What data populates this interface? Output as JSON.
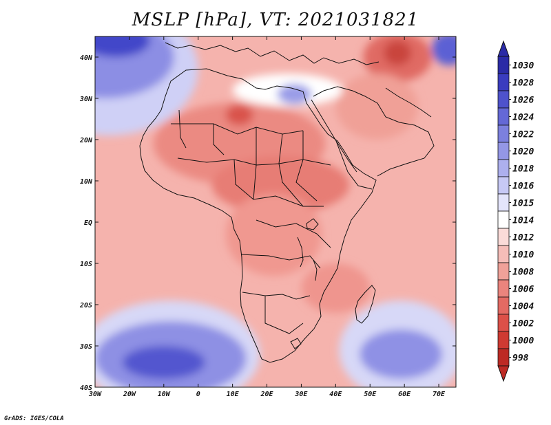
{
  "title": "MSLP [hPa], VT: 2021031821",
  "credit": "GrADS: IGES/COLA",
  "map": {
    "lon_range": [
      -30,
      75
    ],
    "lat_range": [
      -40,
      45
    ],
    "x_ticks": [
      {
        "lon": -30,
        "label": "30W"
      },
      {
        "lon": -20,
        "label": "20W"
      },
      {
        "lon": -10,
        "label": "10W"
      },
      {
        "lon": 0,
        "label": "0"
      },
      {
        "lon": 10,
        "label": "10E"
      },
      {
        "lon": 20,
        "label": "20E"
      },
      {
        "lon": 30,
        "label": "30E"
      },
      {
        "lon": 40,
        "label": "40E"
      },
      {
        "lon": 50,
        "label": "50E"
      },
      {
        "lon": 60,
        "label": "60E"
      },
      {
        "lon": 70,
        "label": "70E"
      }
    ],
    "y_ticks": [
      {
        "lat": 40,
        "label": "40N"
      },
      {
        "lat": 30,
        "label": "30N"
      },
      {
        "lat": 20,
        "label": "20N"
      },
      {
        "lat": 10,
        "label": "10N"
      },
      {
        "lat": 0,
        "label": "EQ"
      },
      {
        "lat": -10,
        "label": "10S"
      },
      {
        "lat": -20,
        "label": "20S"
      },
      {
        "lat": -30,
        "label": "30S"
      },
      {
        "lat": -40,
        "label": "40S"
      }
    ],
    "background_color": "#f5b3ad"
  },
  "fields": [
    {
      "name": "low-north-africa",
      "lon": 12,
      "lat": 19,
      "rx": 25,
      "ry": 10,
      "color": "#eb8a82"
    },
    {
      "name": "low-sahel",
      "lon": 24,
      "lat": 9,
      "rx": 20,
      "ry": 7,
      "color": "#e77d75"
    },
    {
      "name": "low-libya",
      "lon": 12,
      "lat": 26,
      "rx": 4,
      "ry": 2.5,
      "color": "#d9534c"
    },
    {
      "name": "low-congo",
      "lon": 22,
      "lat": -3,
      "rx": 14,
      "ry": 10,
      "color": "#f09890"
    },
    {
      "name": "low-mozambique",
      "lon": 40,
      "lat": -16,
      "rx": 10,
      "ry": 6,
      "color": "#ef958e"
    },
    {
      "name": "low-iran",
      "lon": 58,
      "lat": 40,
      "rx": 10,
      "ry": 6,
      "color": "#e06a63"
    },
    {
      "name": "low-iran-core",
      "lon": 58,
      "lat": 41,
      "rx": 4,
      "ry": 3,
      "color": "#c9443d"
    },
    {
      "name": "low-arabia",
      "lon": 52,
      "lat": 28,
      "rx": 12,
      "ry": 8,
      "color": "#f0a097"
    },
    {
      "name": "ridge-mediterranean",
      "lon": 26,
      "lat": 32,
      "rx": 16,
      "ry": 4,
      "color": "#ffffff"
    },
    {
      "name": "high-egypt",
      "lon": 28,
      "lat": 31,
      "rx": 5,
      "ry": 2.5,
      "color": "#9a9ce8"
    },
    {
      "name": "high-azores-outer",
      "lon": -26,
      "lat": 37,
      "rx": 26,
      "ry": 16,
      "color": "#cfd0f6"
    },
    {
      "name": "high-azores-mid",
      "lon": -27,
      "lat": 40,
      "rx": 20,
      "ry": 10,
      "color": "#8c8ee4"
    },
    {
      "name": "high-azores-core",
      "lon": -24,
      "lat": 44,
      "rx": 10,
      "ry": 4,
      "color": "#4347c9"
    },
    {
      "name": "high-sa-atlantic-outer",
      "lon": -8,
      "lat": -32,
      "rx": 26,
      "ry": 13,
      "color": "#d7d8f7"
    },
    {
      "name": "high-sa-atlantic-mid",
      "lon": -8,
      "lat": -33,
      "rx": 22,
      "ry": 9,
      "color": "#8e90e4"
    },
    {
      "name": "high-sa-atlantic-core",
      "lon": -10,
      "lat": -34,
      "rx": 12,
      "ry": 4,
      "color": "#5356cf"
    },
    {
      "name": "high-indian-outer",
      "lon": 59,
      "lat": -31,
      "rx": 18,
      "ry": 12,
      "color": "#d7d8f7"
    },
    {
      "name": "high-indian-core",
      "lon": 59,
      "lat": -32,
      "rx": 12,
      "ry": 6,
      "color": "#8f91e5"
    },
    {
      "name": "high-caspian",
      "lon": 73,
      "lat": 42,
      "rx": 5,
      "ry": 4,
      "color": "#5c60d4"
    }
  ],
  "colorbar": {
    "labels": [
      "1030",
      "1028",
      "1026",
      "1024",
      "1022",
      "1020",
      "1018",
      "1016",
      "1015",
      "1014",
      "1012",
      "1010",
      "1008",
      "1006",
      "1004",
      "1002",
      "1000",
      "998"
    ],
    "colors": [
      "#2b2ba6",
      "#3a3cbf",
      "#4e52cc",
      "#6468d6",
      "#7c80de",
      "#9497e6",
      "#adb0ee",
      "#c7c9f5",
      "#e4e5fb",
      "#ffffff",
      "#fadbd8",
      "#f5bdb8",
      "#f0a199",
      "#eb847d",
      "#e46a63",
      "#dc5048",
      "#cf3a32",
      "#bd2a24"
    ]
  }
}
